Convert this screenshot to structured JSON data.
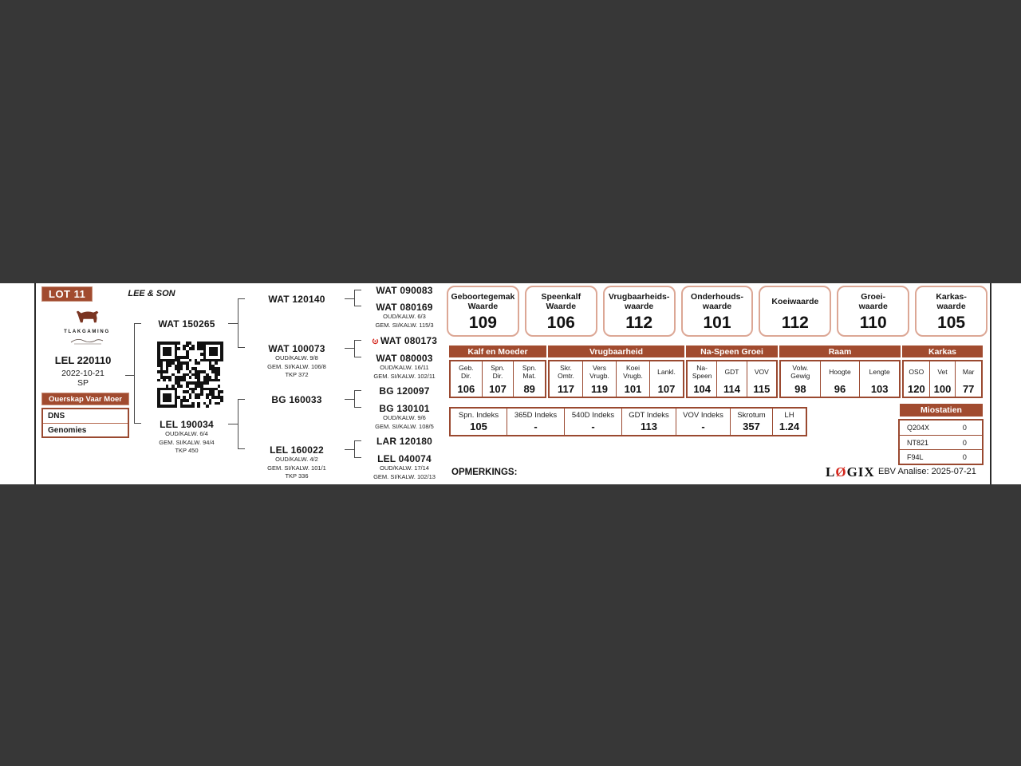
{
  "card": {
    "lot": "LOT 11",
    "breeder": "LEE & SON",
    "brand": "TLAKGAMING",
    "animal_id": "LEL 220110",
    "birth_date": "2022-10-21",
    "code": "SP",
    "parentage": {
      "col1": "Ouerskap",
      "col2": "Vaar",
      "col3": "Moer",
      "row1": "DNS",
      "row2": "Genomies"
    }
  },
  "pedigree": {
    "sire": {
      "id": "WAT 150265"
    },
    "dam": {
      "id": "LEL 190034",
      "l1": "OUD/KALW. 6/4",
      "l2": "GEM. SI/KALW. 94/4",
      "l3": "TKP 450"
    },
    "ss": {
      "id": "WAT 120140"
    },
    "sd": {
      "id": "WAT 100073",
      "l1": "OUD/KALW. 9/8",
      "l2": "GEM. SI/KALW. 106/8",
      "l3": "TKP 372"
    },
    "ds": {
      "id": "BG 160033"
    },
    "dd": {
      "id": "LEL 160022",
      "l1": "OUD/KALW. 4/2",
      "l2": "GEM. SI/KALW. 101/1",
      "l3": "TKP 336"
    },
    "sss": {
      "id": "WAT 090083"
    },
    "ssd": {
      "id": "WAT 080169",
      "l1": "OUD/KALW. 6/3",
      "l2": "GEM. SI/KALW. 115/3"
    },
    "sds": {
      "id": "WAT 080173"
    },
    "sdd": {
      "id": "WAT 080003",
      "l1": "OUD/KALW. 16/11",
      "l2": "GEM. SI/KALW. 102/11"
    },
    "dss": {
      "id": "BG 120097"
    },
    "dsd": {
      "id": "BG 130101",
      "l1": "OUD/KALW. 9/6",
      "l2": "GEM. SI/KALW. 108/5"
    },
    "dds": {
      "id": "LAR 120180"
    },
    "ddd": {
      "id": "LEL 040074",
      "l1": "OUD/KALW. 17/14",
      "l2": "GEM. SI/KALW. 102/13"
    }
  },
  "value_boxes": [
    {
      "line1": "Geboortegemak",
      "line2": "Waarde",
      "value": "109"
    },
    {
      "line1": "Speenkalf",
      "line2": "Waarde",
      "value": "106"
    },
    {
      "line1": "Vrugbaarheids-",
      "line2": "waarde",
      "value": "112"
    },
    {
      "line1": "Onderhouds-",
      "line2": "waarde",
      "value": "101"
    },
    {
      "line1": "Koeiwaarde",
      "line2": "",
      "value": "112"
    },
    {
      "line1": "Groei-",
      "line2": "waarde",
      "value": "110"
    },
    {
      "line1": "Karkas-",
      "line2": "waarde",
      "value": "105"
    }
  ],
  "ebv": {
    "groups": [
      {
        "name": "Kalf en Moeder",
        "cols": [
          {
            "h1": "Geb.",
            "h2": "Dir.",
            "v": "106"
          },
          {
            "h1": "Spn.",
            "h2": "Dir.",
            "v": "107"
          },
          {
            "h1": "Spn.",
            "h2": "Mat.",
            "v": "89"
          }
        ]
      },
      {
        "name": "Vrugbaarheid",
        "cols": [
          {
            "h1": "Skr.",
            "h2": "Omtr.",
            "v": "117"
          },
          {
            "h1": "Vers",
            "h2": "Vrugb.",
            "v": "119"
          },
          {
            "h1": "Koei",
            "h2": "Vrugb.",
            "v": "101"
          },
          {
            "h1": "Lankl.",
            "h2": "",
            "v": "107"
          }
        ]
      },
      {
        "name": "Na-Speen Groei",
        "cols": [
          {
            "h1": "Na-",
            "h2": "Speen",
            "v": "104"
          },
          {
            "h1": "GDT",
            "h2": "",
            "v": "114"
          },
          {
            "h1": "VOV",
            "h2": "",
            "v": "115"
          }
        ]
      },
      {
        "name": "Raam",
        "cols": [
          {
            "h1": "Volw.",
            "h2": "Gewig",
            "v": "98"
          },
          {
            "h1": "Hoogte",
            "h2": "",
            "v": "96"
          },
          {
            "h1": "Lengte",
            "h2": "",
            "v": "103"
          }
        ]
      },
      {
        "name": "Karkas",
        "cols": [
          {
            "h1": "OSO",
            "h2": "",
            "v": "120"
          },
          {
            "h1": "Vet",
            "h2": "",
            "v": "100"
          },
          {
            "h1": "Mar",
            "h2": "",
            "v": "77"
          }
        ]
      }
    ]
  },
  "indexes": [
    {
      "label": "Spn. Indeks",
      "value": "105"
    },
    {
      "label": "365D Indeks",
      "value": "-"
    },
    {
      "label": "540D Indeks",
      "value": "-"
    },
    {
      "label": "GDT Indeks",
      "value": "113"
    },
    {
      "label": "VOV Indeks",
      "value": "-"
    },
    {
      "label": "Skrotum",
      "value": "357"
    },
    {
      "label": "LH",
      "value": "1.24"
    }
  ],
  "miostatien": {
    "title": "Miostatien",
    "rows": [
      {
        "gene": "Q204X",
        "value": "0"
      },
      {
        "gene": "NT821",
        "value": "0"
      },
      {
        "gene": "F94L",
        "value": "0"
      }
    ]
  },
  "footer": {
    "remarks": "OPMERKINGS:",
    "logix_l": "L",
    "logix_o": "Ø",
    "logix_rest": "GIX",
    "analysis": "EBV Analise: 2025-07-21"
  },
  "colors": {
    "accent_brown": "#A14B2F",
    "box_border": "#DCA795",
    "band": "#373737",
    "mark_red": "#D4281E"
  }
}
